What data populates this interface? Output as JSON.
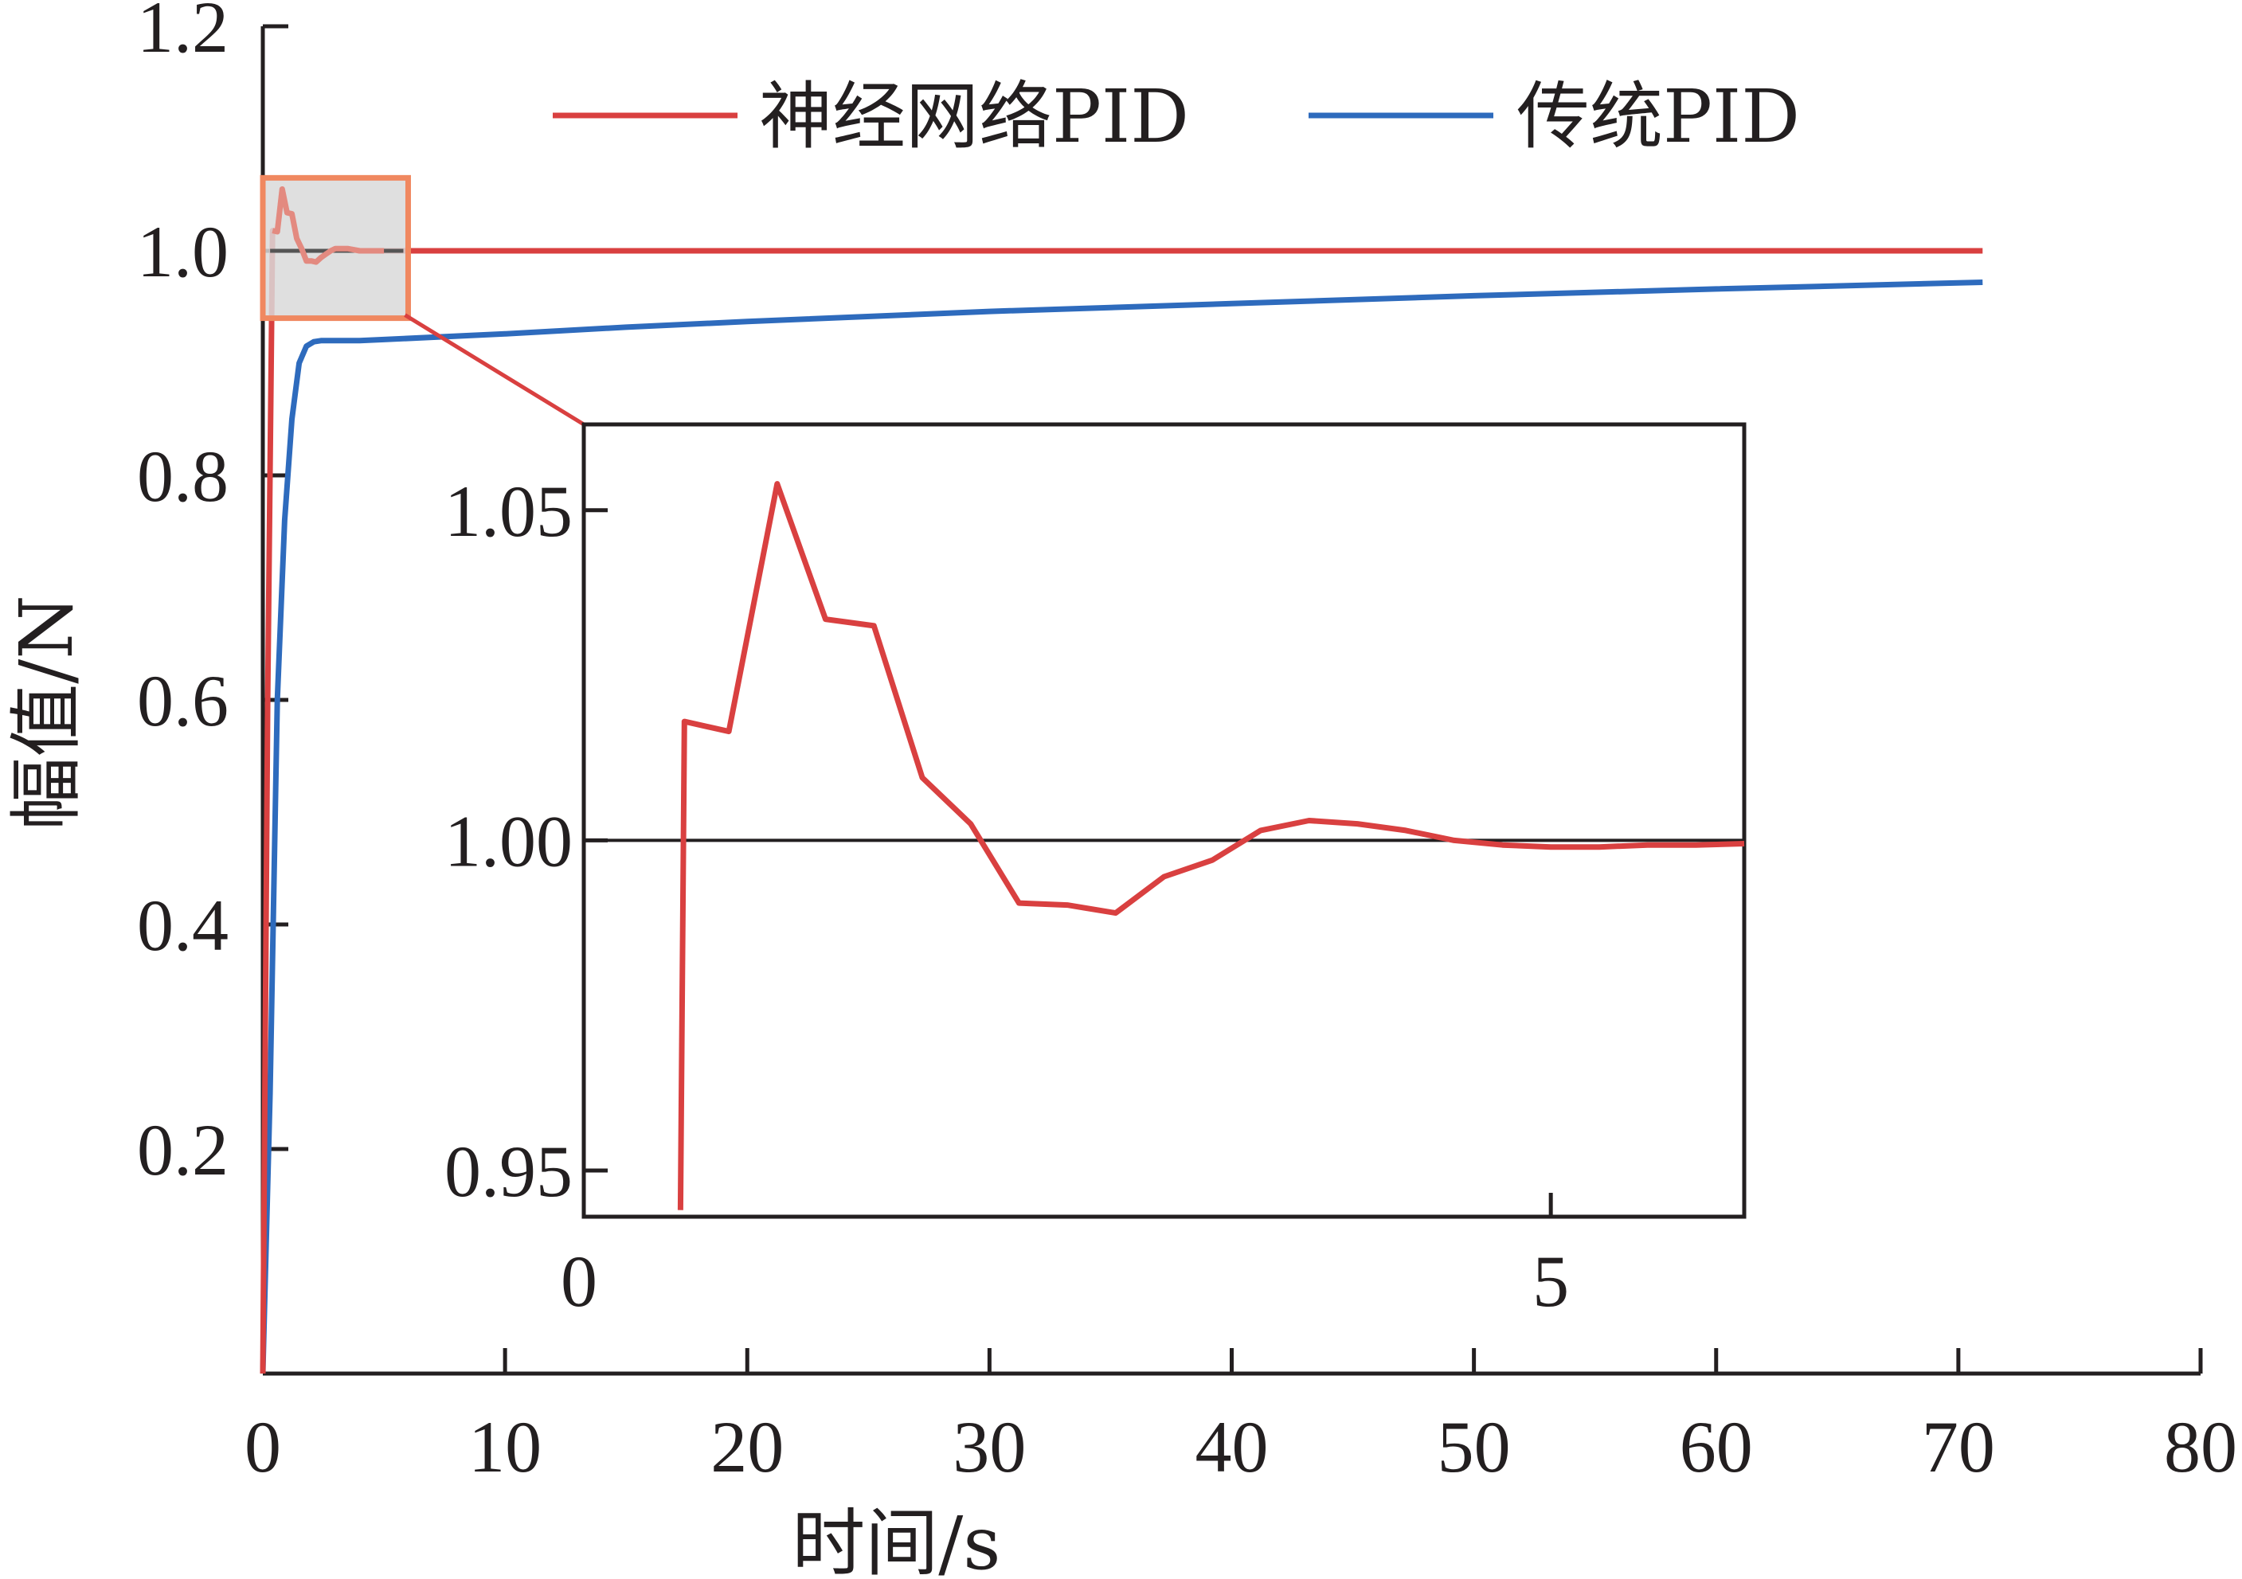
{
  "chart_data": [
    {
      "type": "line",
      "xlabel": "时间/s",
      "ylabel": "幅值/N",
      "xlim": [
        0,
        80
      ],
      "ylim": [
        0,
        1.2
      ],
      "x_ticks": [
        "0",
        "10",
        "20",
        "30",
        "40",
        "50",
        "60",
        "70",
        "80"
      ],
      "y_ticks": [
        "0.2",
        "0.4",
        "0.6",
        "0.8",
        "1.0",
        "1.2"
      ],
      "legend_position": "top-right",
      "grid": false,
      "colors": {
        "neural": "#d94040",
        "traditional": "#2e6bbd",
        "highlight_border": "#f08860",
        "highlight_fill": "#d9d9d9"
      },
      "series": [
        {
          "name": "神经网络PID",
          "color": "#d94040",
          "x": [
            0,
            0.2,
            0.4,
            0.6,
            0.8,
            1.0,
            1.2,
            1.4,
            1.6,
            1.8,
            2.0,
            2.2,
            2.4,
            2.6,
            2.8,
            3.0,
            3.5,
            4.0,
            5.0,
            10,
            20,
            40,
            60,
            71
          ],
          "y": [
            0,
            0.6,
            1.018,
            1.017,
            1.055,
            1.034,
            1.033,
            1.011,
            1.002,
            0.991,
            0.991,
            0.99,
            0.994,
            0.997,
            1.0,
            1.002,
            1.002,
            1.0,
            1.0,
            1.0,
            1.0,
            1.0,
            1.0,
            1.0
          ]
        },
        {
          "name": "传统PID",
          "color": "#2e6bbd",
          "x": [
            0,
            0.3,
            0.6,
            0.9,
            1.2,
            1.5,
            1.8,
            2.1,
            2.4,
            3.0,
            4.0,
            5.0,
            10,
            15,
            20,
            30,
            40,
            50,
            60,
            71
          ],
          "y": [
            0,
            0.25,
            0.6,
            0.76,
            0.85,
            0.9,
            0.915,
            0.919,
            0.92,
            0.92,
            0.92,
            0.921,
            0.926,
            0.932,
            0.937,
            0.946,
            0.953,
            0.96,
            0.966,
            0.972
          ]
        }
      ],
      "highlight_region": {
        "xlim": [
          0,
          6
        ],
        "ylim": [
          0.94,
          1.065
        ]
      }
    },
    {
      "type": "line",
      "xlim": [
        0,
        6
      ],
      "ylim": [
        0.943,
        1.063
      ],
      "x_ticks": [
        "0",
        "5"
      ],
      "y_ticks": [
        "0.95",
        "1.00",
        "1.05"
      ],
      "reference_line": 1.0,
      "series": [
        {
          "name": "神经网络PID",
          "color": "#d94040",
          "x": [
            0.5,
            0.52,
            0.75,
            1.0,
            1.25,
            1.5,
            1.75,
            2.0,
            2.25,
            2.5,
            2.75,
            3.0,
            3.25,
            3.5,
            3.75,
            4.0,
            4.25,
            4.5,
            4.75,
            5.0,
            5.25,
            5.5,
            5.75,
            6.0
          ],
          "y": [
            0.944,
            1.018,
            1.0165,
            1.054,
            1.0335,
            1.0325,
            1.0095,
            1.0025,
            0.9905,
            0.9902,
            0.989,
            0.9945,
            0.997,
            1.0015,
            1.003,
            1.0025,
            1.0015,
            1.0,
            0.9993,
            0.999,
            0.999,
            0.9993,
            0.9993,
            0.9995
          ]
        }
      ]
    }
  ]
}
